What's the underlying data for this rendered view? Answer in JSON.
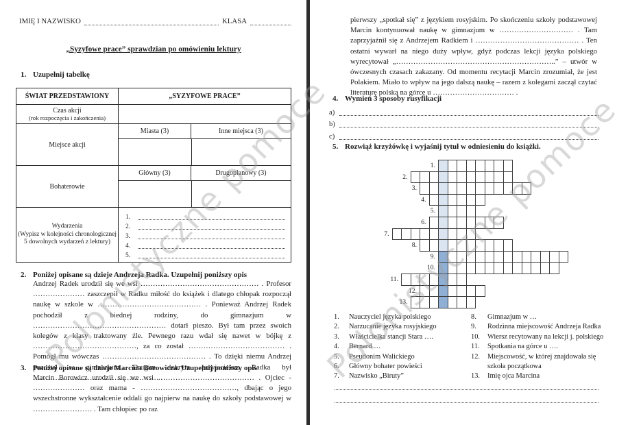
{
  "watermark_text": "Polonistyczne pomoce",
  "left": {
    "header": {
      "name_label": "IMIĘ I NAZWISKO",
      "class_label": "KLASA"
    },
    "title": "„Syzyfowe prace” sprawdzian po omówieniu lektury",
    "q1": {
      "num": "1.",
      "heading": "Uzupełnij tabelkę"
    },
    "table": {
      "col1_header": "ŚWIAT PRZEDSTAWIONY",
      "col2_header": "„SYZYFOWE PRACE”",
      "czas_line1": "Czas akcji",
      "czas_line2": "(rok rozpoczęcia i zakończenia)",
      "miejsce_label": "Miejsce akcji",
      "miejsce_sub1": "Miasta (3)",
      "miejsce_sub2": "Inne miejsca (3)",
      "bohater_label": "Bohaterowie",
      "bohater_sub1": "Główny (3)",
      "bohater_sub2": "Drugoplanowy (3)",
      "wydarzenia_line1": "Wydarzenia",
      "wydarzenia_line2": "(Wypisz w kolejności chronologicznej",
      "wydarzenia_line3": "5 dowolnych wydarzeń z lektury)",
      "wydarzenia_items": [
        "1.",
        "2.",
        "3.",
        "4.",
        "5."
      ]
    },
    "q2": {
      "num": "2.",
      "heading": "Poniżej opisane są dzieje Andrzeja Radka. Uzupełnij poniższy opis",
      "body": "Andrzej Radek urodził się we wsi ………………………………………… . Profesor ………………… zaszczepił w Radku miłość do książek i dlatego chłopak rozpoczął naukę w szkole w …………………………………… . Ponieważ Andrzej Radek pochodził z biednej rodziny, do gimnazjum w ……………………………………………… dotarł pieszo. Był tam przez swoich kolegów z klasy traktowany źle. Pewnego razu wdał się nawet w bójkę z ……………………………………, za co został ………………………………… . Pomógł mu wówczas …………………………………… . To dzięki niemu Andrzej pozostał w gimnazjum. Drugim dobrym przyjacielem Radka był …………………………………………… ."
    },
    "q3": {
      "num": "3.",
      "heading": "Poniżej opisane są dzieje Marcina Borowicza. Uzupełnij poniższy opis",
      "body": "Marcin Borowicz urodził się we wsi ………………………………… . Ojciec - ………………… oraz mama - …………………………………, dbając o jego wszechstronne wykształcenie oddali go najpierw na naukę do szkoły podstawowej w …………………… . Tam chłopiec po raz"
    }
  },
  "right": {
    "continuation": "pierwszy „spotkał się” z językiem rosyjskim. Po skończeniu szkoły podstawowej Marcin kontynuował naukę w gimnazjum w ………………………… . Tam zaprzyjaźnił się z Andrzejem Radkiem i …………………………………… . Ten ostatni wywarł na niego duży wpływ, gdyż podczas lekcji języka polskiego wyrecytował „………………………………………………………..” – utwór w ówczesnych czasach zakazany. Od momentu recytacji Marcin zrozumiał, że jest Polakiem. Miało to wpływ na jego dalszą naukę – razem z kolegami zaczął czytać literaturę polską na górce u …………………………… .",
    "q4": {
      "num": "4.",
      "heading": "Wymień 3 sposoby rusyfikacji",
      "items": [
        "a)",
        "b)",
        "c)"
      ]
    },
    "q5": {
      "num": "5.",
      "heading": "Rozwiąż krzyżówkę i wyjaśnij tytuł w odniesieniu do książki."
    },
    "crossword": {
      "key_color_light": "#dbe5f1",
      "key_color_dark": "#8fafd4",
      "dark_from_row": 9,
      "rows": [
        {
          "num": "1.",
          "before": 0,
          "total": 8
        },
        {
          "num": "2.",
          "before": 3,
          "total": 11
        },
        {
          "num": "3.",
          "before": 2,
          "total": 12
        },
        {
          "num": "4.",
          "before": 1,
          "total": 6
        },
        {
          "num": "5.",
          "before": 0,
          "total": 4
        },
        {
          "num": "6.",
          "before": 1,
          "total": 8
        },
        {
          "num": "7.",
          "before": 5,
          "total": 9
        },
        {
          "num": "8.",
          "before": 2,
          "total": 10
        },
        {
          "num": "9.",
          "before": 0,
          "total": 14
        },
        {
          "num": "10.",
          "before": 0,
          "total": 13
        },
        {
          "num": "11.",
          "before": 4,
          "total": 7
        },
        {
          "num": "12.",
          "before": 2,
          "total": 7
        },
        {
          "num": "13.",
          "before": 3,
          "total": 7
        }
      ]
    },
    "clues_left": [
      {
        "num": "1.",
        "text": "Nauczyciel języka polskiego"
      },
      {
        "num": "2.",
        "text": "Narzucanie języka rosyjskiego"
      },
      {
        "num": "3.",
        "text": "Właścicielka stancji Stara …."
      },
      {
        "num": "4.",
        "text": "Bernard …"
      },
      {
        "num": "5.",
        "text": "Pseudonim Walickiego"
      },
      {
        "num": "6.",
        "text": "Główny bohater powieści"
      },
      {
        "num": "7.",
        "text": "Nazwisko „Biruty”"
      }
    ],
    "clues_right": [
      {
        "num": "8.",
        "text": "Gimnazjum w …"
      },
      {
        "num": "9.",
        "text": "Rodzinna miejscowość Andrzeja Radka"
      },
      {
        "num": "10.",
        "text": "Wiersz recytowany na lekcji j. polskiego"
      },
      {
        "num": "11.",
        "text": "Spotkania na górce u …."
      },
      {
        "num": "12.",
        "text": "Miejscowość, w której znajdowała się szkoła początkowa"
      },
      {
        "num": "13.",
        "text": "Imię ojca Marcina"
      }
    ]
  }
}
